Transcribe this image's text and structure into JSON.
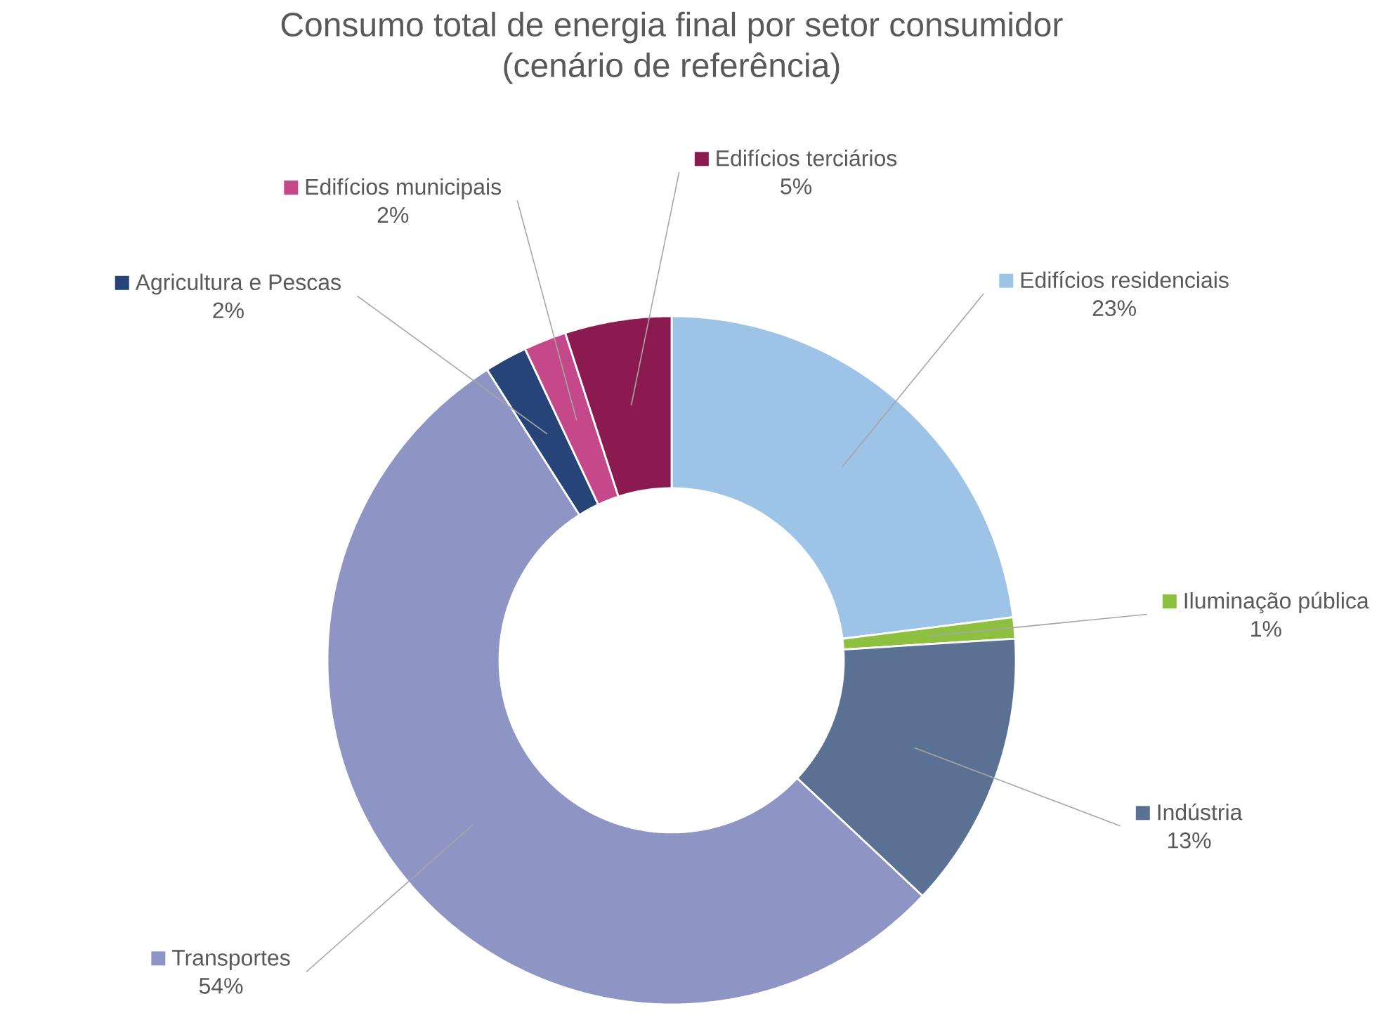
{
  "chart_data": {
    "type": "donut",
    "title": "Consumo total de energia final por setor consumidor\n(cenário de referência)",
    "categories": [
      "Edifícios residenciais",
      "Iluminação pública",
      "Indústria",
      "Transportes",
      "Agricultura e Pescas",
      "Edifícios municipais",
      "Edifícios terciários"
    ],
    "values": [
      23,
      1,
      13,
      54,
      2,
      2,
      5
    ],
    "value_labels": [
      "23%",
      "1%",
      "13%",
      "54%",
      "2%",
      "2%",
      "5%"
    ],
    "legend": "top right",
    "colors": [
      "#9dc3e6",
      "#8dc03f",
      "#5b7194",
      "#8e94c4",
      "#264478",
      "#c4488a",
      "#8b1a50"
    ]
  }
}
